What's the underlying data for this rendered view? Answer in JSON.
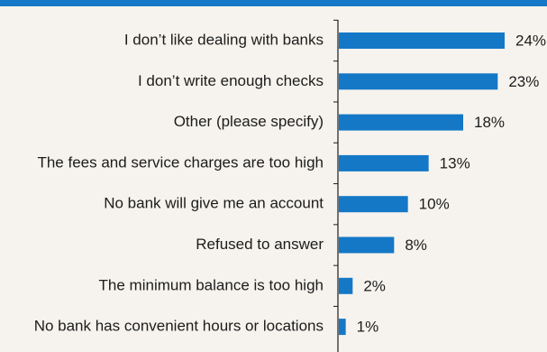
{
  "colors": {
    "bar": "#1478c7",
    "band": "#1478c7",
    "axis": "#1c1c1c",
    "background": "#f6f3ee"
  },
  "chart_data": {
    "type": "bar",
    "orientation": "horizontal",
    "categories": [
      "I don’t like dealing with banks",
      "I don’t write enough checks",
      "Other (please specify)",
      "The fees and service charges are too high",
      "No bank will give me an account",
      "Refused to answer",
      "The minimum balance is too high",
      "No bank has convenient hours or locations"
    ],
    "values": [
      24,
      23,
      18,
      13,
      10,
      8,
      2,
      1
    ],
    "value_labels": [
      "24%",
      "23%",
      "18%",
      "13%",
      "10%",
      "8%",
      "2%",
      "1%"
    ],
    "title": "",
    "xlabel": "",
    "ylabel": "",
    "xlim": [
      0,
      24
    ],
    "grid": false
  }
}
